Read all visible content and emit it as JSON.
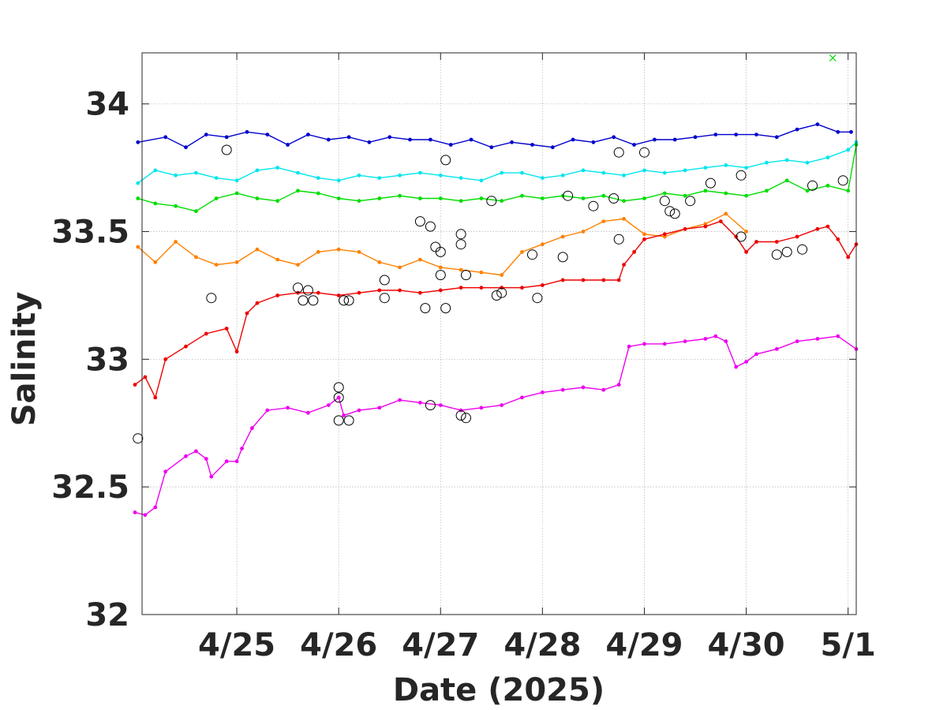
{
  "chart_data": {
    "type": "scatter",
    "title": "",
    "xlabel": "Date (2025)",
    "ylabel": "Salinity",
    "x_ticks": [
      {
        "day": 25,
        "label": "4/25"
      },
      {
        "day": 26,
        "label": "4/26"
      },
      {
        "day": 27,
        "label": "4/27"
      },
      {
        "day": 28,
        "label": "4/28"
      },
      {
        "day": 29,
        "label": "4/29"
      },
      {
        "day": 30,
        "label": "4/30"
      },
      {
        "day": 31,
        "label": "5/1"
      }
    ],
    "y_ticks": [
      {
        "value": 32,
        "label": "32"
      },
      {
        "value": 32.5,
        "label": "32.5"
      },
      {
        "value": 33,
        "label": "33"
      },
      {
        "value": 33.5,
        "label": "33.5"
      },
      {
        "value": 34,
        "label": "34"
      }
    ],
    "xlim": [
      24.07,
      31.08
    ],
    "ylim": [
      32.0,
      34.2
    ],
    "grid": true,
    "series": [
      {
        "color": "#0000cc",
        "points": [
          [
            24.03,
            33.85
          ],
          [
            24.3,
            33.87
          ],
          [
            24.5,
            33.83
          ],
          [
            24.7,
            33.88
          ],
          [
            24.9,
            33.87
          ],
          [
            25.1,
            33.89
          ],
          [
            25.3,
            33.88
          ],
          [
            25.5,
            33.84
          ],
          [
            25.7,
            33.88
          ],
          [
            25.9,
            33.86
          ],
          [
            26.1,
            33.87
          ],
          [
            26.3,
            33.85
          ],
          [
            26.5,
            33.87
          ],
          [
            26.7,
            33.86
          ],
          [
            26.9,
            33.86
          ],
          [
            27.1,
            33.84
          ],
          [
            27.3,
            33.86
          ],
          [
            27.5,
            33.83
          ],
          [
            27.7,
            33.85
          ],
          [
            27.9,
            33.84
          ],
          [
            28.1,
            33.83
          ],
          [
            28.3,
            33.86
          ],
          [
            28.5,
            33.85
          ],
          [
            28.7,
            33.87
          ],
          [
            28.9,
            33.84
          ],
          [
            29.1,
            33.86
          ],
          [
            29.3,
            33.86
          ],
          [
            29.5,
            33.87
          ],
          [
            29.7,
            33.88
          ],
          [
            29.9,
            33.88
          ],
          [
            30.1,
            33.88
          ],
          [
            30.3,
            33.87
          ],
          [
            30.5,
            33.9
          ],
          [
            30.7,
            33.92
          ],
          [
            30.9,
            33.89
          ],
          [
            31.03,
            33.89
          ]
        ]
      },
      {
        "color": "#00e5ee",
        "points": [
          [
            24.03,
            33.69
          ],
          [
            24.2,
            33.74
          ],
          [
            24.4,
            33.72
          ],
          [
            24.6,
            33.73
          ],
          [
            24.8,
            33.71
          ],
          [
            25.0,
            33.7
          ],
          [
            25.2,
            33.74
          ],
          [
            25.4,
            33.75
          ],
          [
            25.6,
            33.73
          ],
          [
            25.8,
            33.71
          ],
          [
            26.0,
            33.7
          ],
          [
            26.2,
            33.72
          ],
          [
            26.4,
            33.71
          ],
          [
            26.6,
            33.72
          ],
          [
            26.8,
            33.73
          ],
          [
            27.0,
            33.72
          ],
          [
            27.2,
            33.71
          ],
          [
            27.4,
            33.7
          ],
          [
            27.6,
            33.73
          ],
          [
            27.8,
            33.73
          ],
          [
            28.0,
            33.71
          ],
          [
            28.2,
            33.72
          ],
          [
            28.4,
            33.74
          ],
          [
            28.6,
            33.73
          ],
          [
            28.8,
            33.72
          ],
          [
            29.0,
            33.74
          ],
          [
            29.2,
            33.73
          ],
          [
            29.4,
            33.74
          ],
          [
            29.6,
            33.75
          ],
          [
            29.8,
            33.76
          ],
          [
            30.0,
            33.75
          ],
          [
            30.2,
            33.77
          ],
          [
            30.4,
            33.78
          ],
          [
            30.6,
            33.77
          ],
          [
            30.8,
            33.79
          ],
          [
            31.0,
            33.82
          ],
          [
            31.08,
            33.85
          ]
        ]
      },
      {
        "color": "#00dd00",
        "points": [
          [
            24.03,
            33.63
          ],
          [
            24.2,
            33.61
          ],
          [
            24.4,
            33.6
          ],
          [
            24.6,
            33.58
          ],
          [
            24.8,
            33.63
          ],
          [
            25.0,
            33.65
          ],
          [
            25.2,
            33.63
          ],
          [
            25.4,
            33.62
          ],
          [
            25.6,
            33.66
          ],
          [
            25.8,
            33.65
          ],
          [
            26.0,
            33.63
          ],
          [
            26.2,
            33.62
          ],
          [
            26.4,
            33.63
          ],
          [
            26.6,
            33.64
          ],
          [
            26.8,
            33.63
          ],
          [
            27.0,
            33.63
          ],
          [
            27.2,
            33.62
          ],
          [
            27.4,
            33.63
          ],
          [
            27.6,
            33.62
          ],
          [
            27.8,
            33.64
          ],
          [
            28.0,
            33.63
          ],
          [
            28.2,
            33.64
          ],
          [
            28.4,
            33.63
          ],
          [
            28.6,
            33.64
          ],
          [
            28.8,
            33.62
          ],
          [
            29.0,
            33.63
          ],
          [
            29.2,
            33.65
          ],
          [
            29.4,
            33.64
          ],
          [
            29.6,
            33.66
          ],
          [
            29.8,
            33.65
          ],
          [
            30.0,
            33.64
          ],
          [
            30.2,
            33.66
          ],
          [
            30.4,
            33.7
          ],
          [
            30.6,
            33.66
          ],
          [
            30.8,
            33.68
          ],
          [
            31.0,
            33.66
          ],
          [
            31.08,
            33.84
          ]
        ]
      },
      {
        "color": "#ff8000",
        "points": [
          [
            24.03,
            33.44
          ],
          [
            24.2,
            33.38
          ],
          [
            24.4,
            33.46
          ],
          [
            24.6,
            33.4
          ],
          [
            24.8,
            33.37
          ],
          [
            25.0,
            33.38
          ],
          [
            25.2,
            33.43
          ],
          [
            25.4,
            33.39
          ],
          [
            25.6,
            33.37
          ],
          [
            25.8,
            33.42
          ],
          [
            26.0,
            33.43
          ],
          [
            26.2,
            33.42
          ],
          [
            26.4,
            33.38
          ],
          [
            26.6,
            33.36
          ],
          [
            26.8,
            33.39
          ],
          [
            27.0,
            33.36
          ],
          [
            27.2,
            33.35
          ],
          [
            27.4,
            33.34
          ],
          [
            27.6,
            33.33
          ],
          [
            27.8,
            33.42
          ],
          [
            28.0,
            33.45
          ],
          [
            28.2,
            33.48
          ],
          [
            28.4,
            33.5
          ],
          [
            28.6,
            33.54
          ],
          [
            28.8,
            33.55
          ],
          [
            29.0,
            33.49
          ],
          [
            29.2,
            33.48
          ],
          [
            29.4,
            33.51
          ],
          [
            29.6,
            33.53
          ],
          [
            29.8,
            33.57
          ],
          [
            30.0,
            33.5
          ]
        ]
      },
      {
        "color": "#ee0000",
        "points": [
          [
            24.0,
            32.9
          ],
          [
            24.1,
            32.93
          ],
          [
            24.2,
            32.85
          ],
          [
            24.3,
            33.0
          ],
          [
            24.5,
            33.05
          ],
          [
            24.7,
            33.1
          ],
          [
            24.9,
            33.12
          ],
          [
            25.0,
            33.03
          ],
          [
            25.1,
            33.18
          ],
          [
            25.2,
            33.22
          ],
          [
            25.4,
            33.25
          ],
          [
            25.6,
            33.26
          ],
          [
            25.8,
            33.26
          ],
          [
            26.0,
            33.25
          ],
          [
            26.2,
            33.26
          ],
          [
            26.4,
            33.27
          ],
          [
            26.6,
            33.27
          ],
          [
            26.8,
            33.26
          ],
          [
            27.0,
            33.27
          ],
          [
            27.2,
            33.28
          ],
          [
            27.4,
            33.28
          ],
          [
            27.6,
            33.28
          ],
          [
            27.8,
            33.28
          ],
          [
            28.0,
            33.29
          ],
          [
            28.2,
            33.31
          ],
          [
            28.4,
            33.31
          ],
          [
            28.6,
            33.31
          ],
          [
            28.75,
            33.31
          ],
          [
            28.8,
            33.37
          ],
          [
            28.9,
            33.42
          ],
          [
            29.0,
            33.47
          ],
          [
            29.2,
            33.49
          ],
          [
            29.4,
            33.51
          ],
          [
            29.6,
            33.52
          ],
          [
            29.75,
            33.54
          ],
          [
            29.9,
            33.48
          ],
          [
            30.0,
            33.42
          ],
          [
            30.1,
            33.46
          ],
          [
            30.3,
            33.46
          ],
          [
            30.5,
            33.48
          ],
          [
            30.7,
            33.51
          ],
          [
            30.8,
            33.52
          ],
          [
            30.9,
            33.47
          ],
          [
            31.0,
            33.4
          ],
          [
            31.08,
            33.45
          ]
        ]
      },
      {
        "color": "#ee00ee",
        "points": [
          [
            24.0,
            32.4
          ],
          [
            24.1,
            32.39
          ],
          [
            24.2,
            32.42
          ],
          [
            24.3,
            32.56
          ],
          [
            24.5,
            32.62
          ],
          [
            24.6,
            32.64
          ],
          [
            24.7,
            32.61
          ],
          [
            24.75,
            32.54
          ],
          [
            24.9,
            32.6
          ],
          [
            25.0,
            32.6
          ],
          [
            25.05,
            32.65
          ],
          [
            25.15,
            32.73
          ],
          [
            25.3,
            32.8
          ],
          [
            25.5,
            32.81
          ],
          [
            25.7,
            32.79
          ],
          [
            25.9,
            32.82
          ],
          [
            26.0,
            32.85
          ],
          [
            26.05,
            32.78
          ],
          [
            26.2,
            32.8
          ],
          [
            26.4,
            32.81
          ],
          [
            26.6,
            32.84
          ],
          [
            26.8,
            32.83
          ],
          [
            27.0,
            32.82
          ],
          [
            27.2,
            32.8
          ],
          [
            27.4,
            32.81
          ],
          [
            27.6,
            32.82
          ],
          [
            27.8,
            32.85
          ],
          [
            28.0,
            32.87
          ],
          [
            28.2,
            32.88
          ],
          [
            28.4,
            32.89
          ],
          [
            28.6,
            32.88
          ],
          [
            28.75,
            32.9
          ],
          [
            28.85,
            33.05
          ],
          [
            29.0,
            33.06
          ],
          [
            29.2,
            33.06
          ],
          [
            29.4,
            33.07
          ],
          [
            29.6,
            33.08
          ],
          [
            29.7,
            33.09
          ],
          [
            29.8,
            33.07
          ],
          [
            29.9,
            32.97
          ],
          [
            30.0,
            32.99
          ],
          [
            30.1,
            33.02
          ],
          [
            30.3,
            33.04
          ],
          [
            30.5,
            33.07
          ],
          [
            30.7,
            33.08
          ],
          [
            30.9,
            33.09
          ],
          [
            31.08,
            33.04
          ]
        ]
      }
    ],
    "flagged_points": [
      [
        24.03,
        32.69
      ],
      [
        24.75,
        33.24
      ],
      [
        24.9,
        33.82
      ],
      [
        25.6,
        33.28
      ],
      [
        25.65,
        33.23
      ],
      [
        25.7,
        33.27
      ],
      [
        25.75,
        33.23
      ],
      [
        26.05,
        33.23
      ],
      [
        26.1,
        33.23
      ],
      [
        26.45,
        33.31
      ],
      [
        26.45,
        33.24
      ],
      [
        26.8,
        33.54
      ],
      [
        26.85,
        33.2
      ],
      [
        26.9,
        33.52
      ],
      [
        26.95,
        33.44
      ],
      [
        27.0,
        33.42
      ],
      [
        27.0,
        33.33
      ],
      [
        27.05,
        33.2
      ],
      [
        27.05,
        33.78
      ],
      [
        27.2,
        33.49
      ],
      [
        27.2,
        33.45
      ],
      [
        27.25,
        33.33
      ],
      [
        27.5,
        33.62
      ],
      [
        27.55,
        33.25
      ],
      [
        27.6,
        33.26
      ],
      [
        27.9,
        33.41
      ],
      [
        27.95,
        33.24
      ],
      [
        28.2,
        33.4
      ],
      [
        28.25,
        33.64
      ],
      [
        28.5,
        33.6
      ],
      [
        28.7,
        33.63
      ],
      [
        28.75,
        33.47
      ],
      [
        28.75,
        33.81
      ],
      [
        29.0,
        33.81
      ],
      [
        29.2,
        33.62
      ],
      [
        29.25,
        33.58
      ],
      [
        29.3,
        33.57
      ],
      [
        29.45,
        33.62
      ],
      [
        29.65,
        33.69
      ],
      [
        29.95,
        33.72
      ],
      [
        29.95,
        33.48
      ],
      [
        30.3,
        33.41
      ],
      [
        30.4,
        33.42
      ],
      [
        30.55,
        33.43
      ],
      [
        30.65,
        33.68
      ],
      [
        30.95,
        33.7
      ],
      [
        26.0,
        32.89
      ],
      [
        26.0,
        32.85
      ],
      [
        26.0,
        32.76
      ],
      [
        26.1,
        32.76
      ],
      [
        26.9,
        32.82
      ],
      [
        27.2,
        32.78
      ],
      [
        27.25,
        32.77
      ]
    ],
    "outlier_marker": {
      "color": "#00dd00",
      "x": 30.85,
      "y": 34.18,
      "symbol": "x"
    }
  }
}
